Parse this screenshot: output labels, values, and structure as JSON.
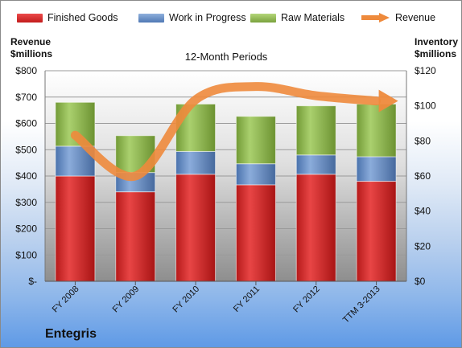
{
  "legend": {
    "finished_goods": "Finished Goods",
    "work_in_progress": "Work in Progress",
    "raw_materials": "Raw Materials",
    "revenue": "Revenue"
  },
  "left_axis_title": [
    "Revenue",
    "$millions"
  ],
  "right_axis_title": [
    "Inventory",
    "$millions"
  ],
  "subtitle": "12-Month Periods",
  "company": "Entegris",
  "colors": {
    "finished_goods": "#d42a2a",
    "work_in_progress": "#6289c3",
    "raw_materials": "#94bc55",
    "revenue": "#ee8a3c"
  },
  "chart_data": {
    "type": "bar",
    "stacked": true,
    "categories": [
      "FY 2008",
      "FY 2009",
      "FY 2010",
      "FY 2011",
      "FY 2012",
      "TTM 3-2013"
    ],
    "series": [
      {
        "name": "Finished Goods",
        "axis": "right",
        "values": [
          60,
          51,
          61,
          55,
          61,
          57
        ]
      },
      {
        "name": "Work in Progress",
        "axis": "right",
        "values": [
          17,
          11,
          13,
          12,
          11,
          14
        ]
      },
      {
        "name": "Raw Materials",
        "axis": "right",
        "values": [
          25,
          21,
          27,
          27,
          28,
          30
        ]
      },
      {
        "name": "Revenue",
        "type": "line",
        "axis": "left",
        "values": [
          555,
          400,
          690,
          740,
          705,
          685
        ]
      }
    ],
    "left_axis": {
      "ylim": [
        0,
        800
      ],
      "ticks": [
        "$-",
        "$100",
        "$200",
        "$300",
        "$400",
        "$500",
        "$600",
        "$700",
        "$800"
      ]
    },
    "right_axis": {
      "ylim": [
        0,
        120
      ],
      "ticks": [
        "$0",
        "$20",
        "$40",
        "$60",
        "$80",
        "$100",
        "$120"
      ]
    },
    "grid": true,
    "legend_position": "top"
  }
}
